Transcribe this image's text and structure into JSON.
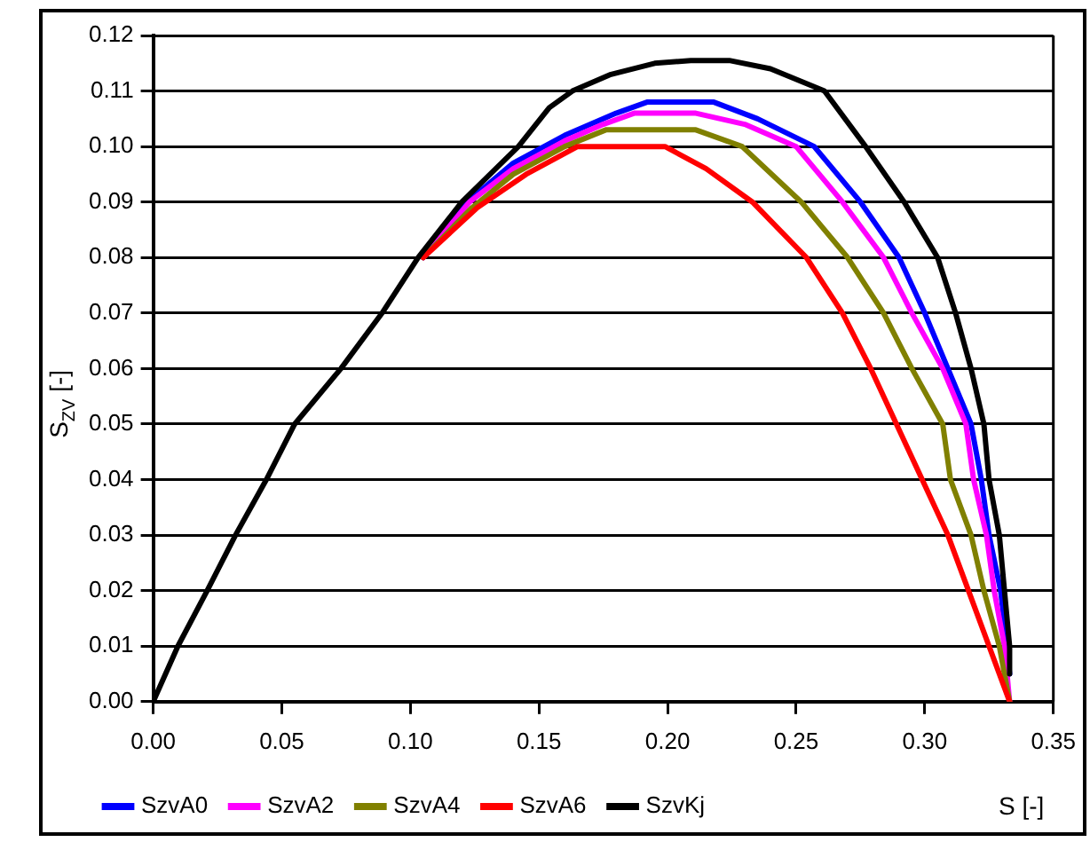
{
  "chart_data": {
    "type": "line",
    "xlabel": "S [-]",
    "ylabel": "S$_{ZV}$ [-]",
    "xlim": [
      0,
      0.35
    ],
    "xticks": [
      {
        "value": 0,
        "label": "0.00"
      },
      0.05,
      {
        "value": 0.1,
        "label": "0.10"
      },
      0.15,
      {
        "value": 0.2,
        "label": "0.20"
      },
      0.25,
      {
        "value": 0.3,
        "label": "0.30"
      },
      0.35
    ],
    "ylim": [
      0,
      0.12
    ],
    "yticks": [
      {
        "value": 0,
        "label": "0.00"
      },
      0.01,
      0.02,
      0.03,
      0.04,
      0.05,
      0.06,
      0.07,
      0.08,
      0.09,
      {
        "value": 0.1,
        "label": "0.10"
      },
      0.11,
      0.12
    ],
    "grid": "y",
    "legend": "bottom",
    "marker": "none",
    "line_style": "solid",
    "series": [
      {
        "name": "SzvA0",
        "color": "#0000ff",
        "x": [
          0.105,
          0.122,
          0.14,
          0.16,
          0.18,
          0.192,
          0.218,
          0.235,
          0.257,
          0.275,
          0.29,
          0.3,
          0.309,
          0.318,
          0.322,
          0.325,
          0.3295,
          0.332,
          0.333
        ],
        "values": [
          0.08,
          0.09,
          0.097,
          0.102,
          0.106,
          0.108,
          0.108,
          0.105,
          0.1,
          0.09,
          0.08,
          0.07,
          0.06,
          0.05,
          0.04,
          0.03,
          0.02,
          0.01,
          0.005
        ]
      },
      {
        "name": "SzvA2",
        "color": "#ff00ff",
        "x": [
          0.105,
          0.123,
          0.14,
          0.16,
          0.175,
          0.187,
          0.211,
          0.23,
          0.25,
          0.268,
          0.284,
          0.295,
          0.307,
          0.316,
          0.319,
          0.324,
          0.327,
          0.331,
          0.333
        ],
        "values": [
          0.08,
          0.09,
          0.096,
          0.101,
          0.104,
          0.106,
          0.106,
          0.104,
          0.1,
          0.09,
          0.08,
          0.07,
          0.06,
          0.05,
          0.04,
          0.03,
          0.02,
          0.01,
          0
        ]
      },
      {
        "name": "SzvA4",
        "color": "#808000",
        "x": [
          0.105,
          0.124,
          0.14,
          0.16,
          0.176,
          0.211,
          0.229,
          0.252,
          0.27,
          0.284,
          0.295,
          0.307,
          0.31,
          0.318,
          0.323,
          0.329,
          0.333
        ],
        "values": [
          0.08,
          0.089,
          0.095,
          0.1,
          0.103,
          0.103,
          0.1,
          0.09,
          0.08,
          0.07,
          0.06,
          0.05,
          0.04,
          0.03,
          0.02,
          0.01,
          0
        ]
      },
      {
        "name": "SzvA6",
        "color": "#ff0000",
        "x": [
          0.105,
          0.126,
          0.145,
          0.165,
          0.199,
          0.215,
          0.233,
          0.254,
          0.268,
          0.279,
          0.289,
          0.299,
          0.309,
          0.317,
          0.325,
          0.333
        ],
        "values": [
          0.08,
          0.089,
          0.095,
          0.1,
          0.1,
          0.096,
          0.09,
          0.08,
          0.07,
          0.06,
          0.05,
          0.04,
          0.03,
          0.02,
          0.01,
          0
        ]
      },
      {
        "name": "SzvKj",
        "color": "#000000",
        "x": [
          0,
          0.0096,
          0.021,
          0.032,
          0.044,
          0.055,
          0.073,
          0.089,
          0.103,
          0.12,
          0.142,
          0.154,
          0.163,
          0.178,
          0.195,
          0.209,
          0.224,
          0.24,
          0.261,
          0.277,
          0.292,
          0.305,
          0.312,
          0.318,
          0.323,
          0.325,
          0.329,
          0.331,
          0.333,
          0.333
        ],
        "values": [
          0,
          0.01,
          0.02,
          0.03,
          0.04,
          0.05,
          0.06,
          0.07,
          0.08,
          0.09,
          0.1,
          0.107,
          0.11,
          0.113,
          0.115,
          0.1155,
          0.1155,
          0.114,
          0.11,
          0.1,
          0.09,
          0.08,
          0.07,
          0.06,
          0.05,
          0.04,
          0.03,
          0.02,
          0.01,
          0.005
        ]
      }
    ]
  }
}
